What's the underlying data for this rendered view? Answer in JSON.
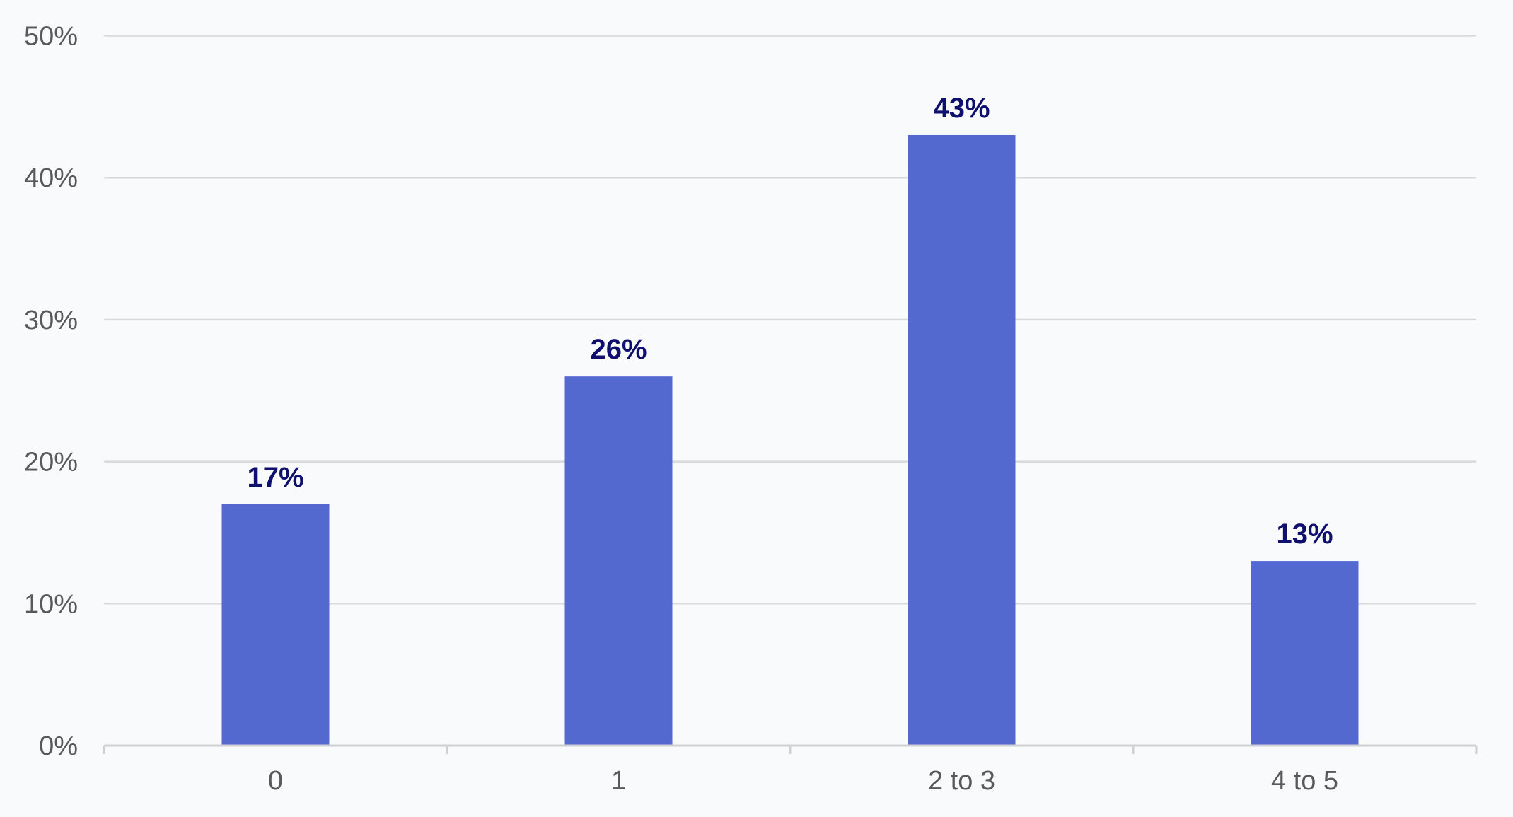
{
  "chart_data": {
    "type": "bar",
    "categories": [
      "0",
      "1",
      "2 to 3",
      "4 to 5"
    ],
    "values": [
      17,
      26,
      43,
      13
    ],
    "data_labels": [
      "17%",
      "26%",
      "43%",
      "13%"
    ],
    "y_ticks": [
      "0%",
      "10%",
      "20%",
      "30%",
      "40%",
      "50%"
    ],
    "ylim": [
      0,
      50
    ],
    "grid": true,
    "legend": "none",
    "colors": {
      "bar": "#5469cf",
      "data_label": "#0f0f6e",
      "background": "#f9fafc"
    }
  }
}
